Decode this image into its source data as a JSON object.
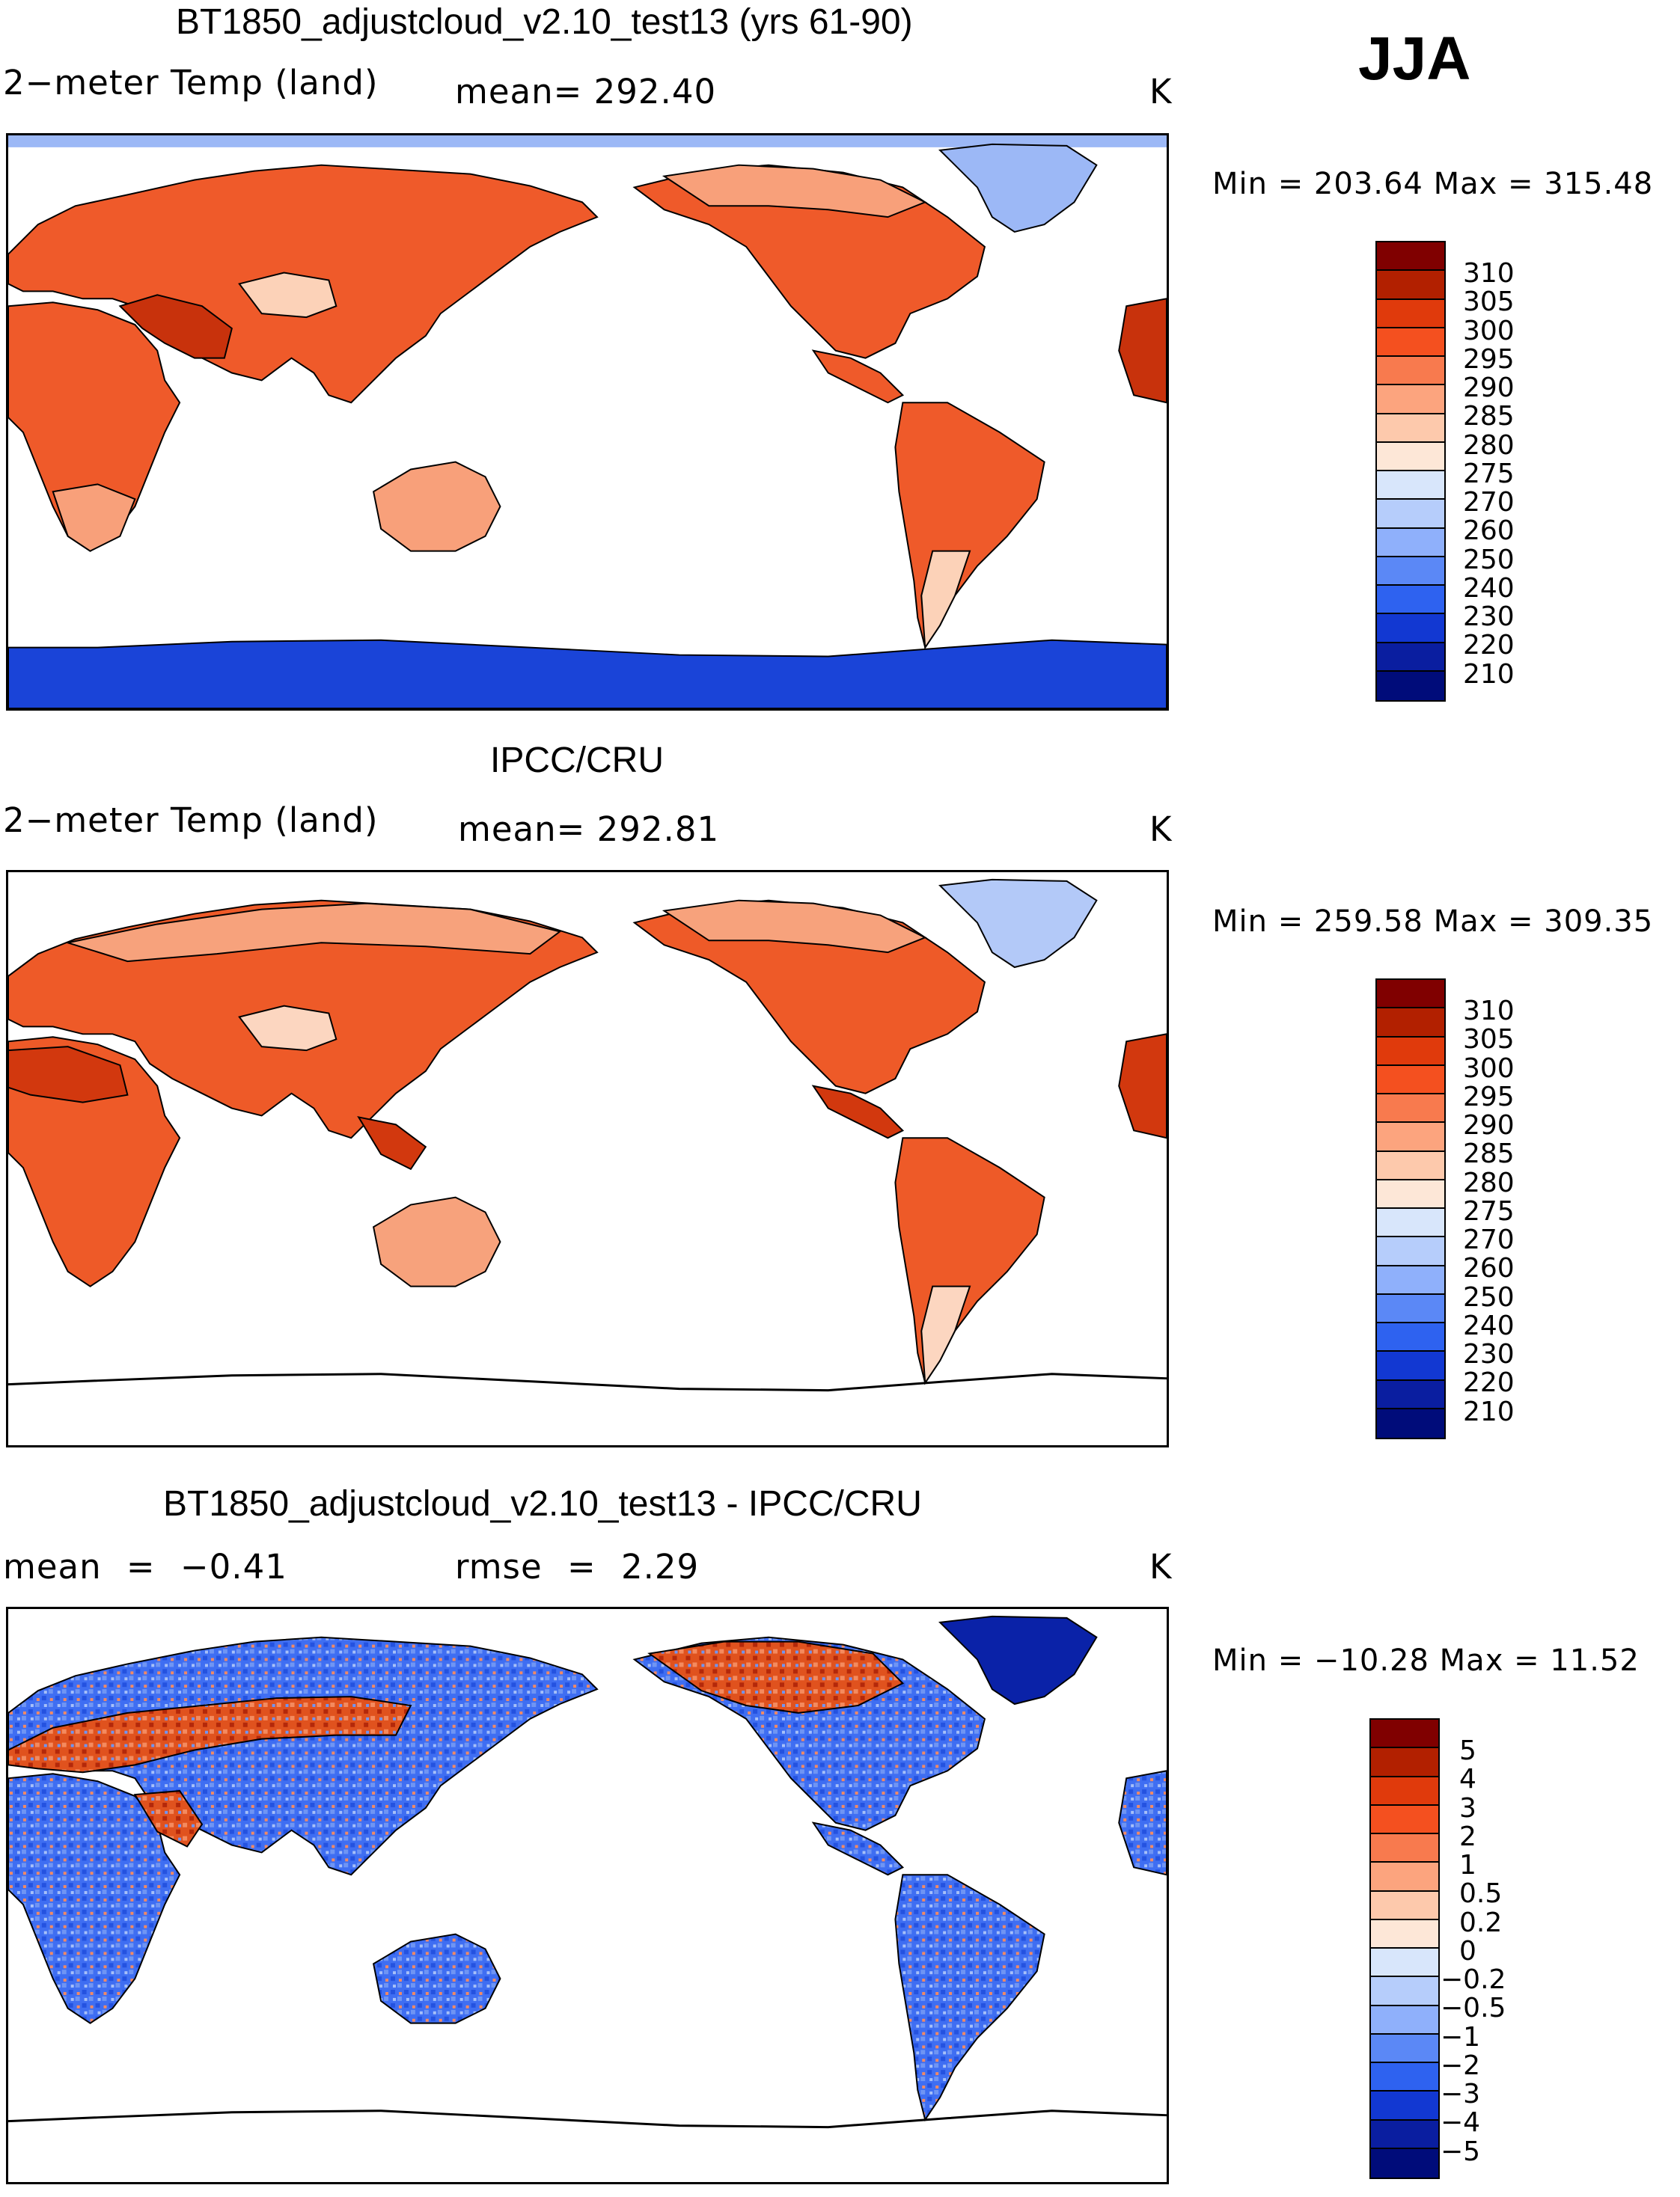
{
  "season": "JJA",
  "panels": [
    {
      "title": "BT1850_adjustcloud_v2.10_test13 (yrs 61-90)",
      "left_label": "2−meter Temp (land)",
      "center_label": "mean= 292.40",
      "right_label": "K",
      "minmax": "Min = 203.64 Max = 315.48",
      "colorbar": {
        "labels": [
          "310",
          "305",
          "300",
          "295",
          "290",
          "285",
          "280",
          "275",
          "270",
          "260",
          "250",
          "240",
          "230",
          "220",
          "210"
        ],
        "colors": [
          "#800000",
          "#b22000",
          "#e03a0c",
          "#f4501f",
          "#f87a4e",
          "#fca47e",
          "#fdc9ac",
          "#fde7d7",
          "#d8e6fb",
          "#b6cdfb",
          "#8fb0fb",
          "#5b88f6",
          "#2e62f0",
          "#1238d2",
          "#0a1ea0",
          "#000c7a"
        ]
      },
      "fills": {
        "land_warm": "#ef5a2a",
        "land_hot": "#c8320c",
        "land_mild": "#f8a07a",
        "land_cool": "#fcd2b8",
        "ice": "#1a44d8",
        "ice_light": "#9cb8f6"
      }
    },
    {
      "title": "IPCC/CRU",
      "left_label": "2−meter Temp (land)",
      "center_label": "mean= 292.81",
      "right_label": "K",
      "minmax": "Min = 259.58 Max = 309.35",
      "colorbar": {
        "labels": [
          "310",
          "305",
          "300",
          "295",
          "290",
          "285",
          "280",
          "275",
          "270",
          "260",
          "250",
          "240",
          "230",
          "220",
          "210"
        ],
        "colors": [
          "#800000",
          "#b22000",
          "#e03a0c",
          "#f4501f",
          "#f87a4e",
          "#fca47e",
          "#fdc9ac",
          "#fde7d7",
          "#d8e6fb",
          "#b6cdfb",
          "#8fb0fb",
          "#5b88f6",
          "#2e62f0",
          "#1238d2",
          "#0a1ea0",
          "#000c7a"
        ]
      },
      "fills": {
        "land_warm": "#ee5a28",
        "land_hot": "#d2380e",
        "land_mild": "#f7a27c",
        "land_cool": "#fcd6c0",
        "ice": "#ffffff",
        "ice_light": "#b3c9f8"
      }
    },
    {
      "title": "BT1850_adjustcloud_v2.10_test13 - IPCC/CRU",
      "left_label": "mean = −0.41",
      "center_label": "rmse = 2.29",
      "right_label": "K",
      "minmax": "Min = −10.28 Max = 11.52",
      "colorbar": {
        "labels": [
          "5",
          "4",
          "3",
          "2",
          "1",
          "0.5",
          "0.2",
          "0",
          "−0.2",
          "−0.5",
          "−1",
          "−2",
          "−3",
          "−4",
          "−5"
        ],
        "colors": [
          "#800000",
          "#b22000",
          "#e03a0c",
          "#f4501f",
          "#f87a4e",
          "#fca47e",
          "#fdc9ac",
          "#fde7d7",
          "#d8e6fb",
          "#b6cdfb",
          "#8fb0fb",
          "#5b88f6",
          "#2e62f0",
          "#1238d2",
          "#0a1ea0",
          "#000c7a"
        ]
      },
      "fills": {
        "land_warm": "#3f6ef2",
        "land_hot": "#d84a1c",
        "land_mild": "#6f95f4",
        "land_cool": "#e86a40",
        "ice": "#ffffff",
        "ice_light": "#0a22a8"
      }
    }
  ]
}
